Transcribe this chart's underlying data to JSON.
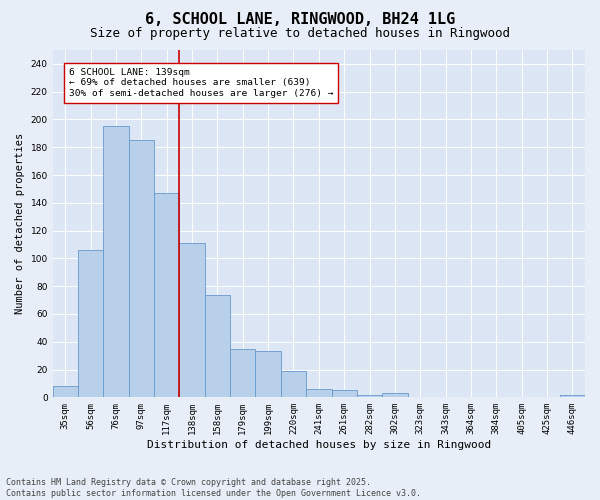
{
  "title": "6, SCHOOL LANE, RINGWOOD, BH24 1LG",
  "subtitle": "Size of property relative to detached houses in Ringwood",
  "xlabel": "Distribution of detached houses by size in Ringwood",
  "ylabel": "Number of detached properties",
  "categories": [
    "35sqm",
    "56sqm",
    "76sqm",
    "97sqm",
    "117sqm",
    "138sqm",
    "158sqm",
    "179sqm",
    "199sqm",
    "220sqm",
    "241sqm",
    "261sqm",
    "282sqm",
    "302sqm",
    "323sqm",
    "343sqm",
    "364sqm",
    "384sqm",
    "405sqm",
    "425sqm",
    "446sqm"
  ],
  "values": [
    8,
    106,
    195,
    185,
    147,
    111,
    74,
    35,
    33,
    19,
    6,
    5,
    2,
    3,
    0,
    0,
    0,
    0,
    0,
    0,
    2
  ],
  "bar_color": "#b8d0ea",
  "bar_edge_color": "#6699cc",
  "vline_color": "#cc0000",
  "annotation_text": "6 SCHOOL LANE: 139sqm\n← 69% of detached houses are smaller (639)\n30% of semi-detached houses are larger (276) →",
  "annotation_box_color": "#ffffff",
  "annotation_box_edge_color": "#cc0000",
  "ylim": [
    0,
    250
  ],
  "yticks": [
    0,
    20,
    40,
    60,
    80,
    100,
    120,
    140,
    160,
    180,
    200,
    220,
    240
  ],
  "plot_bg_color": "#dce6f5",
  "fig_bg_color": "#e8eef7",
  "grid_color": "#ffffff",
  "footer": "Contains HM Land Registry data © Crown copyright and database right 2025.\nContains public sector information licensed under the Open Government Licence v3.0.",
  "title_fontsize": 11,
  "subtitle_fontsize": 9,
  "xlabel_fontsize": 8,
  "ylabel_fontsize": 7.5,
  "tick_fontsize": 6.5,
  "annotation_fontsize": 6.8,
  "footer_fontsize": 6
}
